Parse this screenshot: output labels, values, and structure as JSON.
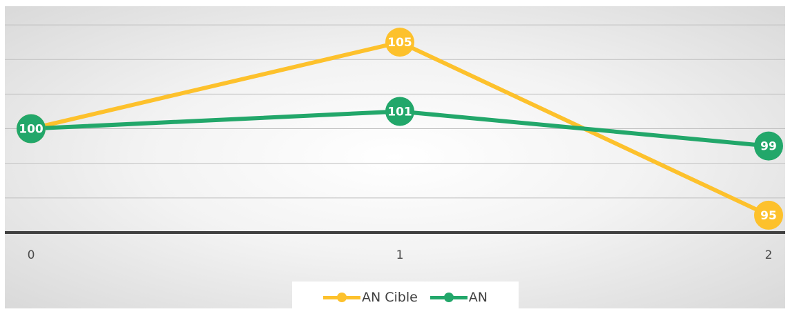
{
  "chart_data": {
    "type": "line",
    "x": [
      0,
      1,
      2
    ],
    "tick_labels": [
      "0",
      "1",
      "2"
    ],
    "series": [
      {
        "name": "AN Cible",
        "values": [
          100,
          105,
          95
        ],
        "labels": [
          "100",
          "105",
          "95"
        ],
        "color": "#FDC12C"
      },
      {
        "name": "AN",
        "values": [
          100,
          101,
          99
        ],
        "labels": [
          "100",
          "101",
          "99"
        ],
        "color": "#22A76A"
      }
    ],
    "ylim": [
      94,
      107
    ],
    "grid": true,
    "legend": "bottom-center",
    "title": "",
    "xlabel": "",
    "ylabel": ""
  }
}
